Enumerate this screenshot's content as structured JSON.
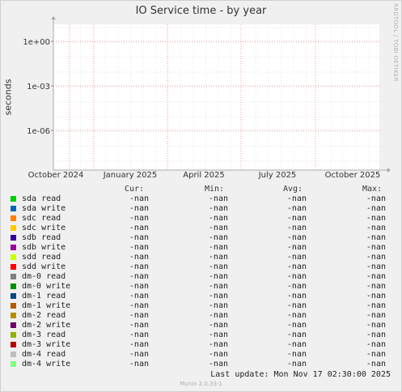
{
  "chart_data": {
    "type": "line",
    "title": "IO Service time - by year",
    "ylabel": "seconds",
    "yscale": "log",
    "y_tick_labels": [
      "1e+00",
      "1e-03",
      "1e-06"
    ],
    "x_tick_labels": [
      "October 2024",
      "January 2025",
      "April 2025",
      "July 2025",
      "October 2025"
    ],
    "side_label": "RRDTOOL / TOBI OETIKER",
    "grid": true,
    "series": [
      {
        "name": "sda read",
        "color": "#00cc00",
        "cur": "-nan",
        "min": "-nan",
        "avg": "-nan",
        "max": "-nan"
      },
      {
        "name": "sda write",
        "color": "#0066b3",
        "cur": "-nan",
        "min": "-nan",
        "avg": "-nan",
        "max": "-nan"
      },
      {
        "name": "sdc read",
        "color": "#ff8000",
        "cur": "-nan",
        "min": "-nan",
        "avg": "-nan",
        "max": "-nan"
      },
      {
        "name": "sdc write",
        "color": "#ffcc00",
        "cur": "-nan",
        "min": "-nan",
        "avg": "-nan",
        "max": "-nan"
      },
      {
        "name": "sdb read",
        "color": "#330099",
        "cur": "-nan",
        "min": "-nan",
        "avg": "-nan",
        "max": "-nan"
      },
      {
        "name": "sdb write",
        "color": "#990099",
        "cur": "-nan",
        "min": "-nan",
        "avg": "-nan",
        "max": "-nan"
      },
      {
        "name": "sdd read",
        "color": "#ccff00",
        "cur": "-nan",
        "min": "-nan",
        "avg": "-nan",
        "max": "-nan"
      },
      {
        "name": "sdd write",
        "color": "#ff0000",
        "cur": "-nan",
        "min": "-nan",
        "avg": "-nan",
        "max": "-nan"
      },
      {
        "name": "dm-0 read",
        "color": "#808080",
        "cur": "-nan",
        "min": "-nan",
        "avg": "-nan",
        "max": "-nan"
      },
      {
        "name": "dm-0 write",
        "color": "#008f00",
        "cur": "-nan",
        "min": "-nan",
        "avg": "-nan",
        "max": "-nan"
      },
      {
        "name": "dm-1 read",
        "color": "#00487d",
        "cur": "-nan",
        "min": "-nan",
        "avg": "-nan",
        "max": "-nan"
      },
      {
        "name": "dm-1 write",
        "color": "#b35a00",
        "cur": "-nan",
        "min": "-nan",
        "avg": "-nan",
        "max": "-nan"
      },
      {
        "name": "dm-2 read",
        "color": "#b38f00",
        "cur": "-nan",
        "min": "-nan",
        "avg": "-nan",
        "max": "-nan"
      },
      {
        "name": "dm-2 write",
        "color": "#6b006b",
        "cur": "-nan",
        "min": "-nan",
        "avg": "-nan",
        "max": "-nan"
      },
      {
        "name": "dm-3 read",
        "color": "#8fb300",
        "cur": "-nan",
        "min": "-nan",
        "avg": "-nan",
        "max": "-nan"
      },
      {
        "name": "dm-3 write",
        "color": "#b30000",
        "cur": "-nan",
        "min": "-nan",
        "avg": "-nan",
        "max": "-nan"
      },
      {
        "name": "dm-4 read",
        "color": "#bebebe",
        "cur": "-nan",
        "min": "-nan",
        "avg": "-nan",
        "max": "-nan"
      },
      {
        "name": "dm-4 write",
        "color": "#80ff80",
        "cur": "-nan",
        "min": "-nan",
        "avg": "-nan",
        "max": "-nan"
      }
    ]
  },
  "legend_headers": {
    "cur": "Cur:",
    "min": "Min:",
    "avg": "Avg:",
    "max": "Max:"
  },
  "footer": {
    "last_update": "Last update:  Mon Nov 17 02:30:00 2025",
    "version": "Munin 2.0.33-1"
  }
}
